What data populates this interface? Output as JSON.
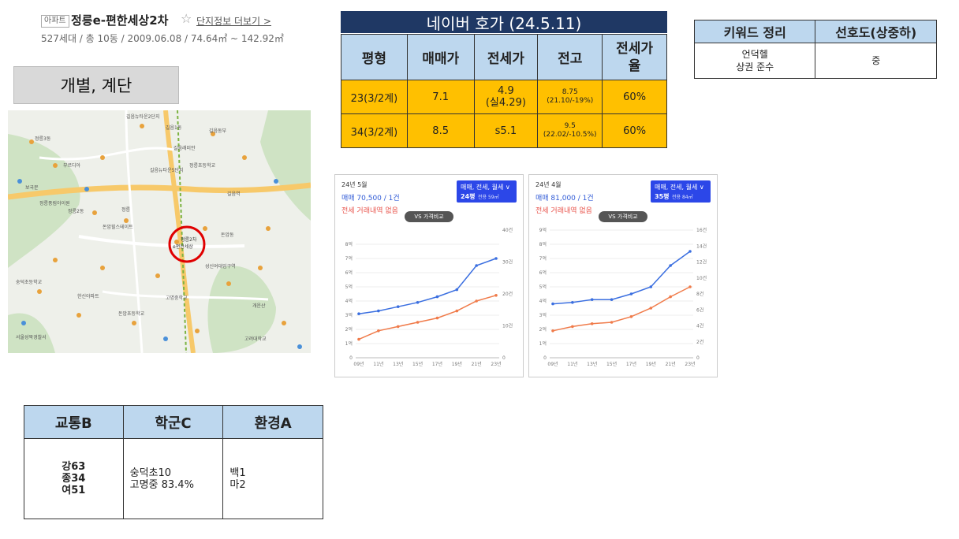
{
  "header": {
    "tag": "아파트",
    "name": "정릉e-편한세상2차",
    "star": "☆",
    "more": "단지정보 더보기 >",
    "summary": "527세대 / 총 10동 / 2009.06.08 / 74.64㎡ ~ 142.92㎡"
  },
  "box_label": "개별, 계단",
  "map": {
    "highlight_label": "정릉2차 e편한세상",
    "labels": [
      "길음뉴타운2단지 푸르지오아파트",
      "정릉3동",
      "길음1동",
      "길음동부 센트레빌아파트",
      "길음래미안",
      "부르디아",
      "길음뉴타운5단지",
      "정릉초등학교",
      "길음역",
      "정릉풍림아이원",
      "돈암힐스테이트",
      "돈암동",
      "정릉2동",
      "보국문",
      "정릉",
      "숭덕초등학교",
      "성신여대입구역",
      "고명중학교",
      "한신아파트",
      "돈암초등학교",
      "서울성북경찰서",
      "개운산",
      "고려대학교"
    ]
  },
  "price": {
    "title": "네이버 호가 (24.5.11)",
    "headers": [
      "평형",
      "매매가",
      "전세가",
      "전고",
      "전세가\n율"
    ],
    "rows": [
      [
        "23(3/2계)",
        "7.1",
        "4.9\n(실4.29)",
        "8.75\n(21.10/-19%)",
        "60%"
      ],
      [
        "34(3/2계)",
        "8.5",
        "s5.1",
        "9.5\n(22.02/-10.5%)",
        "60%"
      ]
    ]
  },
  "keywords": {
    "headers": [
      "키워드 정리",
      "선호도(상중하)"
    ],
    "row": [
      "언덕헬\n상권 준수",
      "중"
    ]
  },
  "scores": {
    "headers": [
      "교통B",
      "학군C",
      "환경A"
    ],
    "cells": [
      "강63\n종34\n여51",
      "숭덕초10\n고명중 83.4%",
      "백1\n마2"
    ]
  },
  "charts": [
    {
      "month": "24년 5월",
      "deal": "매매 70,500 / 1건",
      "rent": "전세 거래내역 없음",
      "filter": "매매, 전세, 월세 ∨",
      "size": "24평",
      "area": "전용 59㎡",
      "vs": "VS 가격비교",
      "y_left": [
        "0",
        "1억",
        "2억",
        "3억",
        "4억",
        "5억",
        "6억",
        "7억",
        "8억"
      ],
      "y_right": [
        "0",
        "10건",
        "20건",
        "30건",
        "40건"
      ],
      "x": [
        "09년",
        "11년",
        "13년",
        "15년",
        "17년",
        "19년",
        "21년",
        "23년"
      ]
    },
    {
      "month": "24년 4월",
      "deal": "매매 81,000 / 1건",
      "rent": "전세 거래내역 없음",
      "filter": "매매, 전세, 월세 ∨",
      "size": "35평",
      "area": "전용 84㎡",
      "vs": "VS 가격비교",
      "y_left": [
        "0",
        "1억",
        "2억",
        "3억",
        "4억",
        "5억",
        "6억",
        "7억",
        "8억",
        "9억"
      ],
      "y_right": [
        "0",
        "2건",
        "4건",
        "6건",
        "8건",
        "10건",
        "12건",
        "14건",
        "16건"
      ],
      "x": [
        "09년",
        "11년",
        "13년",
        "15년",
        "17년",
        "19년",
        "21년",
        "23년"
      ]
    }
  ],
  "chart_data": [
    {
      "type": "line",
      "x": [
        "09년",
        "11년",
        "13년",
        "15년",
        "17년",
        "19년",
        "21년",
        "23년"
      ],
      "series": [
        {
          "name": "매매",
          "color": "#3b6fe0",
          "values": [
            3.1,
            3.3,
            3.6,
            3.9,
            4.3,
            4.8,
            6.5,
            7.0
          ]
        },
        {
          "name": "전세",
          "color": "#f07b4a",
          "values": [
            1.3,
            1.9,
            2.2,
            2.5,
            2.8,
            3.3,
            4.0,
            4.4
          ]
        }
      ],
      "ylim": [
        0,
        9
      ]
    },
    {
      "type": "line",
      "x": [
        "09년",
        "11년",
        "13년",
        "15년",
        "17년",
        "19년",
        "21년",
        "23년"
      ],
      "series": [
        {
          "name": "매매",
          "color": "#3b6fe0",
          "values": [
            3.8,
            3.9,
            4.1,
            4.1,
            4.5,
            5.0,
            6.5,
            7.5
          ]
        },
        {
          "name": "전세",
          "color": "#f07b4a",
          "values": [
            1.9,
            2.2,
            2.4,
            2.5,
            2.9,
            3.5,
            4.3,
            5.0
          ]
        }
      ],
      "ylim": [
        0,
        9
      ]
    }
  ]
}
